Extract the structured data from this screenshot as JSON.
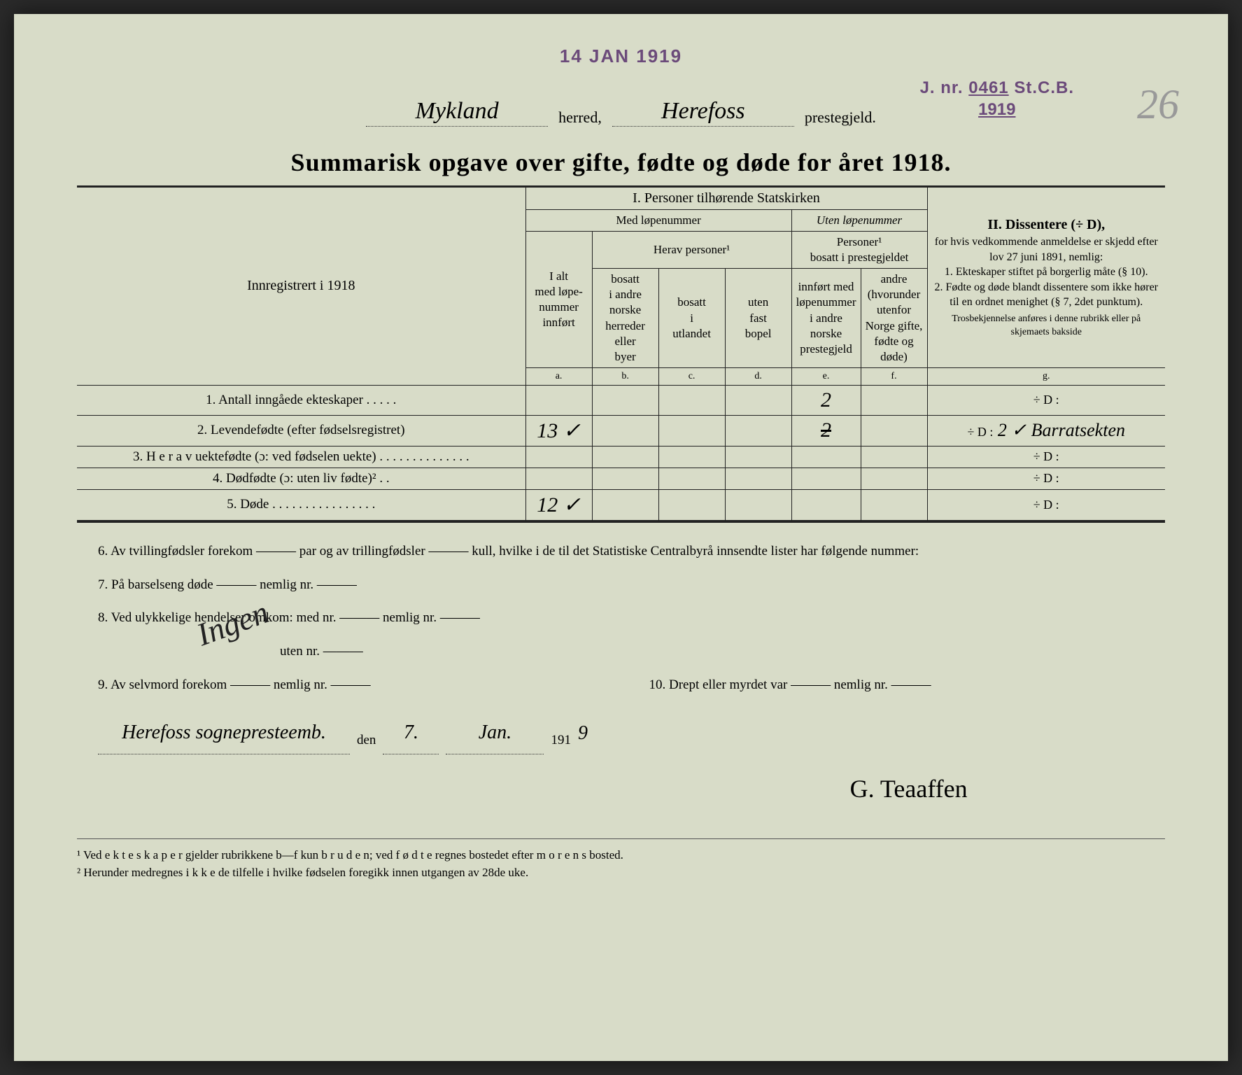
{
  "paper_bg": "#d8dcc8",
  "stamps": {
    "date": "14 JAN 1919",
    "date_color": "#6b4a7a",
    "jnr_prefix": "J. nr.",
    "jnr_number": "0461",
    "jnr_suffix": "St.C.B.",
    "jnr_year": "1919",
    "jnr_color": "#6b4a7a"
  },
  "page_number": "26",
  "header": {
    "herred": "Mykland",
    "herred_label": "herred,",
    "prestegjeld": "Herefoss",
    "prestegjeld_label": "prestegjeld."
  },
  "title": "Summarisk opgave over gifte, fødte og døde for året 1918.",
  "col_headers": {
    "left": "Innregistrert i 1918",
    "section_I": "I.  Personer tilhørende Statskirken",
    "med_lope": "Med løpenummer",
    "uten_lope": "Uten løpenummer",
    "i_alt": "I alt\nmed løpe-\nnummer\ninnført",
    "herav": "Herav personer¹",
    "b": "bosatt\ni andre\nnorske\nherreder\neller\nbyer",
    "c": "bosatt\ni\nutlandet",
    "d": "uten\nfast\nbopel",
    "uten_sub": "Personer¹\nbosatt i prestegjeldet",
    "e": "innført med\nløpenummer\ni andre\nnorske\nprestegjeld",
    "f": "andre\n(hvorunder\nutenfor\nNorge gifte,\nfødte og døde)",
    "a_lab": "a.",
    "b_lab": "b.",
    "c_lab": "c.",
    "d_lab": "d.",
    "e_lab": "e.",
    "f_lab": "f.",
    "g_lab": "g.",
    "section_II_title": "II.  Dissentere (÷ D),",
    "section_II_body": "for hvis vedkommende anmeldelse er skjedd efter lov 27 juni 1891, nemlig:\n1. Ekteskaper stiftet på borgerlig måte (§ 10).\n2. Fødte og døde blandt dissentere som ikke hører til en ordnet menighet (§ 7, 2det punktum).",
    "section_II_tiny": "Trosbekjennelse anføres i denne rubrikk eller på skjemaets bakside"
  },
  "rows": [
    {
      "n": "1.",
      "label": "Antall inngåede ekteskaper . . . . .",
      "a": "",
      "b": "",
      "c": "",
      "d": "",
      "e": "2",
      "f": "",
      "g": "÷ D :"
    },
    {
      "n": "2.",
      "label": "Levendefødte (efter fødselsregistret)",
      "a": "13 ✓",
      "b": "",
      "c": "",
      "d": "",
      "e": "2",
      "e_strike": true,
      "f": "",
      "g": "÷ D : 2 ✓  Barratsekten"
    },
    {
      "n": "3.",
      "label": "H e r a v uektefødte (ɔ: ved fødselen uekte) . . . . . . . . . . . . . .",
      "a": "",
      "b": "",
      "c": "",
      "d": "",
      "e": "",
      "f": "",
      "g": "÷ D :"
    },
    {
      "n": "4.",
      "label": "Dødfødte (ɔ: uten liv fødte)² . .",
      "a": "",
      "b": "",
      "c": "",
      "d": "",
      "e": "",
      "f": "",
      "g": "÷ D :"
    },
    {
      "n": "5.",
      "label": "Døde . . . . . . . . . . . . . . . .",
      "a": "12 ✓",
      "b": "",
      "c": "",
      "d": "",
      "e": "",
      "f": "",
      "g": "÷ D :"
    }
  ],
  "below": {
    "l6": "6.  Av tvillingfødsler forekom ——— par og av trillingfødsler ——— kull, hvilke i de til det Statistiske Centralbyrå innsendte lister har følgende nummer:",
    "l7": "7.  På barselseng døde ——— nemlig nr. ———",
    "l8a": "8.  Ved ulykkelige hendelser omkom: med nr. ——— nemlig nr. ———",
    "l8b": "uten nr. ———",
    "l9": "9.  Av selvmord forekom ——— nemlig nr. ———",
    "l10": "10.  Drept eller myrdet var ——— nemlig nr. ———",
    "hw_ingen": "Ingen",
    "place": "Herefoss sognepresteemb.",
    "den": "den",
    "date_day": "7.",
    "date_month": "Jan.",
    "year_prefix": "191",
    "year_suffix": "9",
    "signature": "G. Teaaffen"
  },
  "footnotes": {
    "f1": "¹  Ved e k t e s k a p e r gjelder rubrikkene b—f kun b r u d e n; ved f ø d t e regnes bostedet efter m o r e n s bosted.",
    "f2": "²  Herunder medregnes i k k e de tilfelle i hvilke fødselen foregikk innen utgangen av 28de uke."
  }
}
